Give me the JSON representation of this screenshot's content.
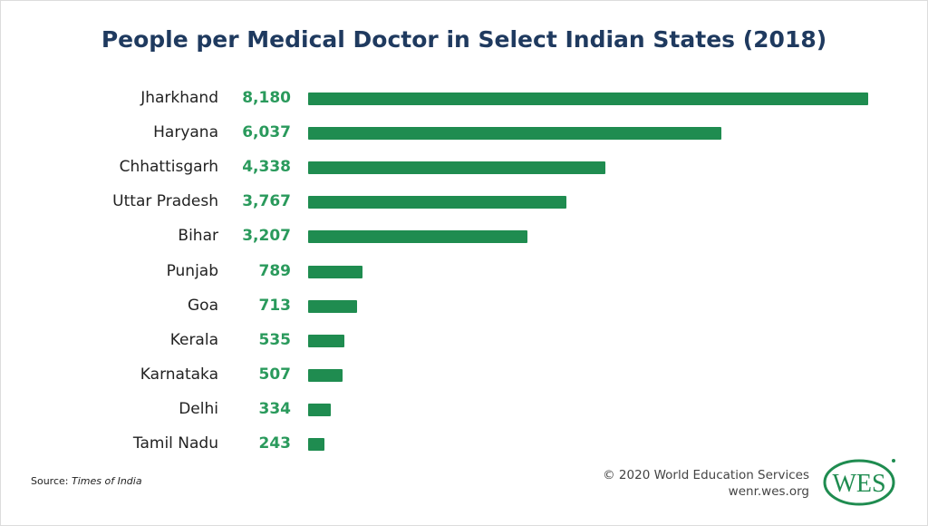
{
  "chart_data": {
    "type": "bar",
    "orientation": "horizontal",
    "title": "People per Medical Doctor in Select Indian States (2018)",
    "categories": [
      "Jharkhand",
      "Haryana",
      "Chhattisgarh",
      "Uttar Pradesh",
      "Bihar",
      "Punjab",
      "Goa",
      "Kerala",
      "Karnataka",
      "Delhi",
      "Tamil Nadu"
    ],
    "values": [
      8180,
      6037,
      4338,
      3767,
      3207,
      789,
      713,
      535,
      507,
      334,
      243
    ],
    "value_labels": [
      "8,180",
      "6,037",
      "4,338",
      "3,767",
      "3,207",
      "789",
      "713",
      "535",
      "507",
      "334",
      "243"
    ],
    "xlim": [
      0,
      8180
    ],
    "grid": false,
    "bar_color": "#1f8c50",
    "label_color": "#2a9a5c",
    "title_color": "#1f3a5f"
  },
  "footer": {
    "source_prefix": "Source: ",
    "source_name": "Times of India",
    "copyright": "© 2020 World Education Services",
    "url": "wenr.wes.org",
    "logo_text": "WES"
  }
}
